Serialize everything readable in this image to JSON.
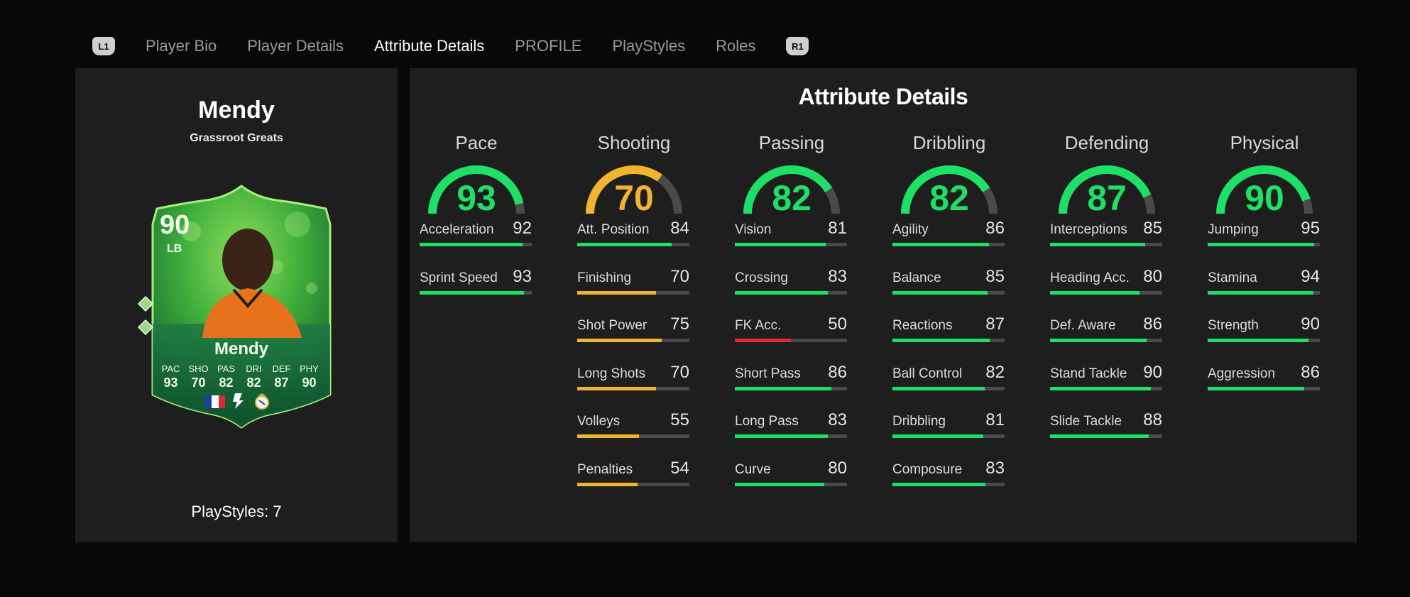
{
  "nav": {
    "left_bumper": "L1",
    "right_bumper": "R1",
    "tabs": [
      {
        "label": "Player Bio",
        "active": false
      },
      {
        "label": "Player Details",
        "active": false
      },
      {
        "label": "Attribute Details",
        "active": true
      },
      {
        "label": "PROFILE",
        "active": false
      },
      {
        "label": "PlayStyles",
        "active": false
      },
      {
        "label": "Roles",
        "active": false
      }
    ]
  },
  "player": {
    "name": "Mendy",
    "campaign": "Grassroot Greats",
    "playstyles": "PlayStyles: 7",
    "card": {
      "rating": "90",
      "position": "LB",
      "name": "Mendy",
      "stats": [
        {
          "label": "PAC",
          "value": "93"
        },
        {
          "label": "SHO",
          "value": "70"
        },
        {
          "label": "PAS",
          "value": "82"
        },
        {
          "label": "DRI",
          "value": "82"
        },
        {
          "label": "DEF",
          "value": "87"
        },
        {
          "label": "PHY",
          "value": "90"
        }
      ],
      "nation_icon": "france-flag-icon",
      "league_icon": "laliga-icon",
      "club_icon": "real-madrid-crest-icon",
      "league_text": "LALIGA"
    }
  },
  "attributes": {
    "title": "Attribute Details",
    "colors": {
      "high": "#1ee067",
      "mid": "#f2b42e",
      "low": "#e0283a",
      "track": "#4a4a4a"
    },
    "categories": [
      {
        "name": "Pace",
        "value": 93,
        "stats": [
          {
            "name": "Acceleration",
            "value": 92
          },
          {
            "name": "Sprint Speed",
            "value": 93
          }
        ]
      },
      {
        "name": "Shooting",
        "value": 70,
        "stats": [
          {
            "name": "Att. Position",
            "value": 84
          },
          {
            "name": "Finishing",
            "value": 70
          },
          {
            "name": "Shot Power",
            "value": 75
          },
          {
            "name": "Long Shots",
            "value": 70
          },
          {
            "name": "Volleys",
            "value": 55
          },
          {
            "name": "Penalties",
            "value": 54
          }
        ]
      },
      {
        "name": "Passing",
        "value": 82,
        "stats": [
          {
            "name": "Vision",
            "value": 81
          },
          {
            "name": "Crossing",
            "value": 83
          },
          {
            "name": "FK Acc.",
            "value": 50
          },
          {
            "name": "Short Pass",
            "value": 86
          },
          {
            "name": "Long Pass",
            "value": 83
          },
          {
            "name": "Curve",
            "value": 80
          }
        ]
      },
      {
        "name": "Dribbling",
        "value": 82,
        "stats": [
          {
            "name": "Agility",
            "value": 86
          },
          {
            "name": "Balance",
            "value": 85
          },
          {
            "name": "Reactions",
            "value": 87
          },
          {
            "name": "Ball Control",
            "value": 82
          },
          {
            "name": "Dribbling",
            "value": 81
          },
          {
            "name": "Composure",
            "value": 83
          }
        ]
      },
      {
        "name": "Defending",
        "value": 87,
        "stats": [
          {
            "name": "Interceptions",
            "value": 85
          },
          {
            "name": "Heading Acc.",
            "value": 80
          },
          {
            "name": "Def. Aware",
            "value": 86
          },
          {
            "name": "Stand Tackle",
            "value": 90
          },
          {
            "name": "Slide Tackle",
            "value": 88
          }
        ]
      },
      {
        "name": "Physical",
        "value": 90,
        "stats": [
          {
            "name": "Jumping",
            "value": 95
          },
          {
            "name": "Stamina",
            "value": 94
          },
          {
            "name": "Strength",
            "value": 90
          },
          {
            "name": "Aggression",
            "value": 86
          }
        ]
      }
    ]
  }
}
